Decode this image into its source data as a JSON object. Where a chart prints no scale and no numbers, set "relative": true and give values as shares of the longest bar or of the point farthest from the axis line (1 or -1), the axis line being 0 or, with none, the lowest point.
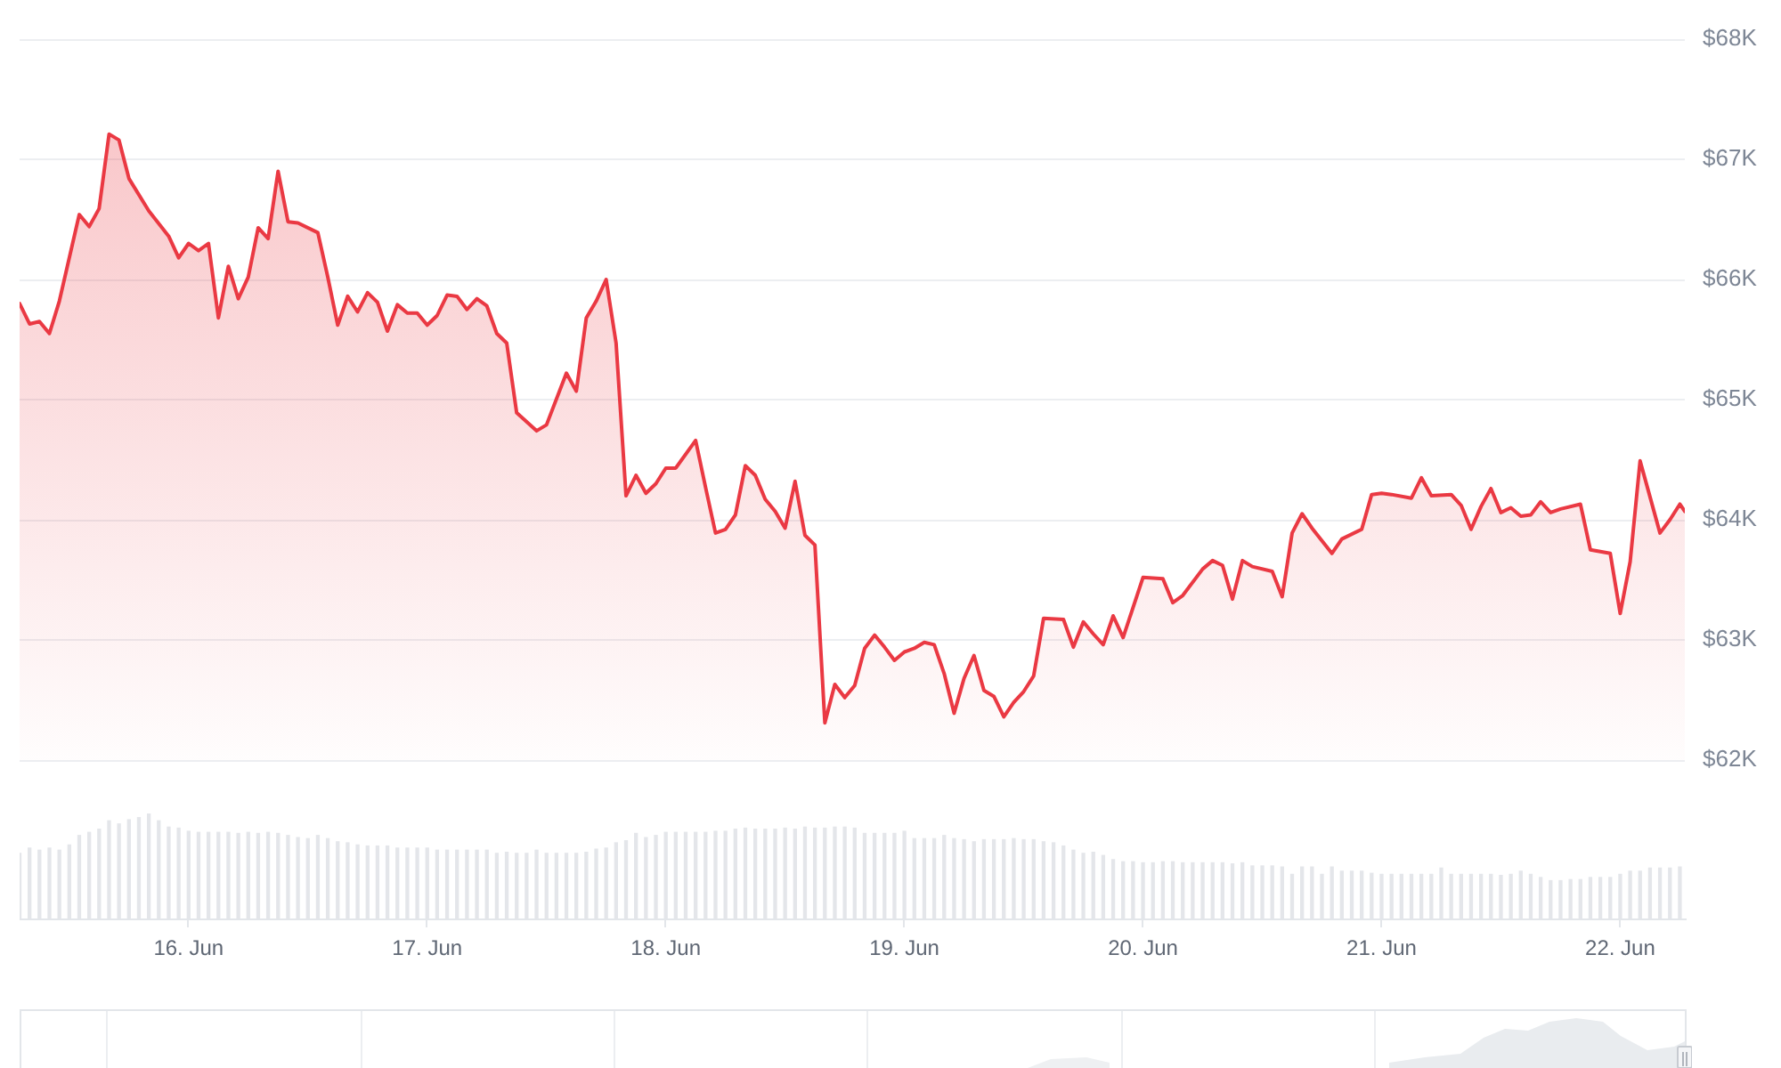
{
  "chart_data": [
    {
      "type": "area",
      "color": "#ea3943",
      "grid": "y",
      "tick_labels": "y",
      "xlim": [
        "--06-15T07:00",
        "--06-22T06:30"
      ],
      "ylim": [
        62000,
        68000
      ],
      "yticks": [
        {
          "value": 62000,
          "label": "$62K"
        },
        {
          "value": 63000,
          "label": "$63K"
        },
        {
          "value": 64000,
          "label": "$64K"
        },
        {
          "value": 65000,
          "label": "$65K"
        },
        {
          "value": 66000,
          "label": "$66K"
        },
        {
          "value": 67000,
          "label": "$67K"
        },
        {
          "value": 68000,
          "label": "$68K"
        }
      ],
      "x": [
        "--06-15T07:00",
        "--06-15T08:00",
        "--06-15T09:00",
        "--06-15T10:00",
        "--06-15T11:00",
        "--06-15T13:00",
        "--06-15T14:00",
        "--06-15T15:00",
        "--06-15T16:00",
        "--06-15T17:00",
        "--06-15T18:00",
        "--06-15T20:00",
        "--06-15T22:00",
        "--06-15T23:00",
        "--06-16T00:00",
        "--06-16T01:00",
        "--06-16T02:00",
        "--06-16T03:00",
        "--06-16T04:00",
        "--06-16T05:00",
        "--06-16T06:00",
        "--06-16T07:00",
        "--06-16T08:00",
        "--06-16T09:00",
        "--06-16T10:00",
        "--06-16T11:00",
        "--06-16T13:00",
        "--06-16T14:00",
        "--06-16T15:00",
        "--06-16T16:00",
        "--06-16T17:00",
        "--06-16T18:00",
        "--06-16T19:00",
        "--06-16T20:00",
        "--06-16T21:00",
        "--06-16T22:00",
        "--06-16T23:00",
        "--06-17T00:00",
        "--06-17T01:00",
        "--06-17T02:00",
        "--06-17T03:00",
        "--06-17T04:00",
        "--06-17T05:00",
        "--06-17T06:00",
        "--06-17T07:00",
        "--06-17T08:00",
        "--06-17T09:00",
        "--06-17T11:00",
        "--06-17T12:00",
        "--06-17T14:00",
        "--06-17T15:00",
        "--06-17T16:00",
        "--06-17T17:00",
        "--06-17T18:00",
        "--06-17T19:00",
        "--06-17T20:00",
        "--06-17T21:00",
        "--06-17T22:00",
        "--06-17T23:00",
        "--06-18T00:00",
        "--06-18T01:00",
        "--06-18T03:00",
        "--06-18T04:00",
        "--06-18T05:00",
        "--06-18T06:00",
        "--06-18T07:00",
        "--06-18T08:00",
        "--06-18T09:00",
        "--06-18T10:00",
        "--06-18T11:00",
        "--06-18T12:00",
        "--06-18T13:00",
        "--06-18T14:00",
        "--06-18T15:00",
        "--06-18T16:00",
        "--06-18T17:00",
        "--06-18T18:00",
        "--06-18T19:00",
        "--06-18T20:00",
        "--06-18T21:00",
        "--06-18T22:00",
        "--06-18T23:00",
        "--06-19T00:00",
        "--06-19T01:00",
        "--06-19T02:00",
        "--06-19T03:00",
        "--06-19T04:00",
        "--06-19T05:00",
        "--06-19T06:00",
        "--06-19T07:00",
        "--06-19T08:00",
        "--06-19T09:00",
        "--06-19T10:00",
        "--06-19T11:00",
        "--06-19T12:00",
        "--06-19T13:00",
        "--06-19T14:00",
        "--06-19T16:00",
        "--06-19T17:00",
        "--06-19T18:00",
        "--06-19T19:00",
        "--06-19T20:00",
        "--06-19T21:00",
        "--06-19T22:00",
        "--06-19T23:00",
        "--06-20T00:00",
        "--06-20T02:00",
        "--06-20T03:00",
        "--06-20T04:00",
        "--06-20T06:00",
        "--06-20T07:00",
        "--06-20T08:00",
        "--06-20T09:00",
        "--06-20T10:00",
        "--06-20T11:00",
        "--06-20T13:00",
        "--06-20T14:00",
        "--06-20T15:00",
        "--06-20T16:00",
        "--06-20T17:00",
        "--06-20T19:00",
        "--06-20T20:00",
        "--06-20T22:00",
        "--06-20T23:00",
        "--06-21T00:00",
        "--06-21T01:00",
        "--06-21T03:00",
        "--06-21T04:00",
        "--06-21T05:00",
        "--06-21T07:00",
        "--06-21T08:00",
        "--06-21T09:00",
        "--06-21T10:00",
        "--06-21T11:00",
        "--06-21T12:00",
        "--06-21T13:00",
        "--06-21T14:00",
        "--06-21T15:00",
        "--06-21T16:00",
        "--06-21T17:00",
        "--06-21T18:00",
        "--06-21T20:00",
        "--06-21T21:00",
        "--06-21T23:00",
        "--06-22T00:00",
        "--06-22T01:00",
        "--06-22T02:00",
        "--06-22T04:00",
        "--06-22T05:00",
        "--06-22T06:00",
        "--06-22T06:30"
      ],
      "values": [
        65800,
        65630,
        65650,
        65550,
        65820,
        66540,
        66440,
        66590,
        67210,
        67160,
        66840,
        66570,
        66360,
        66180,
        66300,
        66240,
        66300,
        65680,
        66110,
        65840,
        66020,
        66430,
        66340,
        66900,
        66480,
        66470,
        66390,
        66020,
        65620,
        65860,
        65730,
        65890,
        65810,
        65570,
        65790,
        65720,
        65720,
        65620,
        65700,
        65870,
        65860,
        65750,
        65840,
        65780,
        65550,
        65470,
        64890,
        64740,
        64790,
        65220,
        65070,
        65680,
        65820,
        66000,
        65470,
        64200,
        64370,
        64220,
        64300,
        64430,
        64430,
        64660,
        64270,
        63890,
        63920,
        64040,
        64450,
        64370,
        64170,
        64070,
        63930,
        64320,
        63870,
        63790,
        62310,
        62630,
        62520,
        62620,
        62930,
        63040,
        62940,
        62830,
        62900,
        62930,
        62980,
        62960,
        62720,
        62390,
        62680,
        62870,
        62580,
        62530,
        62360,
        62480,
        62570,
        62700,
        63180,
        63170,
        62940,
        63150,
        63050,
        62960,
        63200,
        63020,
        63270,
        63520,
        63510,
        63310,
        63370,
        63590,
        63660,
        63620,
        63340,
        63660,
        63610,
        63570,
        63360,
        63890,
        64050,
        63930,
        63720,
        63840,
        63920,
        64210,
        64220,
        64210,
        64180,
        64350,
        64200,
        64210,
        64120,
        63920,
        64110,
        64260,
        64060,
        64100,
        64030,
        64040,
        64150,
        64060,
        64090,
        64130,
        63750,
        63720,
        63220,
        63650,
        64490,
        63890,
        64000,
        64130,
        64070
      ]
    },
    {
      "type": "bar",
      "relative": true,
      "color": "#e4e6ea",
      "xlim": [
        "--06-15T07:00",
        "--06-22T06:30"
      ],
      "xticks": [
        {
          "value": "--06-16",
          "label": "16. Jun"
        },
        {
          "value": "--06-17",
          "label": "17. Jun"
        },
        {
          "value": "--06-18",
          "label": "18. Jun"
        },
        {
          "value": "--06-19",
          "label": "19. Jun"
        },
        {
          "value": "--06-20",
          "label": "20. Jun"
        },
        {
          "value": "--06-21",
          "label": "21. Jun"
        },
        {
          "value": "--06-22",
          "label": "22. Jun"
        }
      ],
      "x": [
        "--06-15T07:00",
        "--06-15T08:00",
        "--06-15T09:00",
        "--06-15T10:00",
        "--06-15T11:00",
        "--06-15T12:00",
        "--06-15T13:00",
        "--06-15T14:00",
        "--06-15T15:00",
        "--06-15T16:00",
        "--06-15T17:00",
        "--06-15T18:00",
        "--06-15T19:00",
        "--06-15T20:00",
        "--06-15T21:00",
        "--06-15T22:00",
        "--06-15T23:00",
        "--06-16T00:00",
        "--06-16T01:00",
        "--06-16T02:00",
        "--06-16T03:00",
        "--06-16T04:00",
        "--06-16T05:00",
        "--06-16T06:00",
        "--06-16T07:00",
        "--06-16T08:00",
        "--06-16T09:00",
        "--06-16T10:00",
        "--06-16T11:00",
        "--06-16T12:00",
        "--06-16T13:00",
        "--06-16T14:00",
        "--06-16T15:00",
        "--06-16T16:00",
        "--06-16T17:00",
        "--06-16T18:00",
        "--06-16T19:00",
        "--06-16T20:00",
        "--06-16T21:00",
        "--06-16T22:00",
        "--06-16T23:00",
        "--06-17T00:00",
        "--06-17T01:00",
        "--06-17T02:00",
        "--06-17T03:00",
        "--06-17T04:00",
        "--06-17T05:00",
        "--06-17T06:00",
        "--06-17T07:00",
        "--06-17T08:00",
        "--06-17T09:00",
        "--06-17T10:00",
        "--06-17T11:00",
        "--06-17T12:00",
        "--06-17T13:00",
        "--06-17T14:00",
        "--06-17T15:00",
        "--06-17T16:00",
        "--06-17T17:00",
        "--06-17T18:00",
        "--06-17T19:00",
        "--06-17T20:00",
        "--06-17T21:00",
        "--06-17T22:00",
        "--06-17T23:00",
        "--06-18T00:00",
        "--06-18T01:00",
        "--06-18T02:00",
        "--06-18T03:00",
        "--06-18T04:00",
        "--06-18T05:00",
        "--06-18T06:00",
        "--06-18T07:00",
        "--06-18T08:00",
        "--06-18T09:00",
        "--06-18T10:00",
        "--06-18T11:00",
        "--06-18T12:00",
        "--06-18T13:00",
        "--06-18T14:00",
        "--06-18T15:00",
        "--06-18T16:00",
        "--06-18T17:00",
        "--06-18T18:00",
        "--06-18T19:00",
        "--06-18T20:00",
        "--06-18T21:00",
        "--06-18T22:00",
        "--06-18T23:00",
        "--06-19T00:00",
        "--06-19T01:00",
        "--06-19T02:00",
        "--06-19T03:00",
        "--06-19T04:00",
        "--06-19T05:00",
        "--06-19T06:00",
        "--06-19T07:00",
        "--06-19T08:00",
        "--06-19T09:00",
        "--06-19T10:00",
        "--06-19T11:00",
        "--06-19T12:00",
        "--06-19T13:00",
        "--06-19T14:00",
        "--06-19T15:00",
        "--06-19T16:00",
        "--06-19T17:00",
        "--06-19T18:00",
        "--06-19T19:00",
        "--06-19T20:00",
        "--06-19T21:00",
        "--06-19T22:00",
        "--06-19T23:00",
        "--06-20T00:00",
        "--06-20T01:00",
        "--06-20T02:00",
        "--06-20T03:00",
        "--06-20T04:00",
        "--06-20T05:00",
        "--06-20T06:00",
        "--06-20T07:00",
        "--06-20T08:00",
        "--06-20T09:00",
        "--06-20T10:00",
        "--06-20T11:00",
        "--06-20T12:00",
        "--06-20T13:00",
        "--06-20T14:00",
        "--06-20T15:00",
        "--06-20T16:00",
        "--06-20T17:00",
        "--06-20T18:00",
        "--06-20T19:00",
        "--06-20T20:00",
        "--06-20T21:00",
        "--06-20T22:00",
        "--06-20T23:00",
        "--06-21T00:00",
        "--06-21T01:00",
        "--06-21T02:00",
        "--06-21T03:00",
        "--06-21T04:00",
        "--06-21T05:00",
        "--06-21T06:00",
        "--06-21T07:00",
        "--06-21T08:00",
        "--06-21T09:00",
        "--06-21T10:00",
        "--06-21T11:00",
        "--06-21T12:00",
        "--06-21T13:00",
        "--06-21T14:00",
        "--06-21T15:00",
        "--06-21T16:00",
        "--06-21T17:00",
        "--06-21T18:00",
        "--06-21T19:00",
        "--06-21T20:00",
        "--06-21T21:00",
        "--06-21T22:00",
        "--06-21T23:00",
        "--06-22T00:00",
        "--06-22T01:00",
        "--06-22T02:00",
        "--06-22T03:00",
        "--06-22T04:00",
        "--06-22T05:00",
        "--06-22T06:00"
      ],
      "values": [
        0.62,
        0.67,
        0.65,
        0.67,
        0.65,
        0.7,
        0.79,
        0.82,
        0.85,
        0.93,
        0.9,
        0.94,
        0.96,
        1,
        0.93,
        0.87,
        0.86,
        0.83,
        0.82,
        0.82,
        0.82,
        0.82,
        0.81,
        0.82,
        0.81,
        0.82,
        0.81,
        0.79,
        0.77,
        0.76,
        0.79,
        0.76,
        0.73,
        0.72,
        0.7,
        0.69,
        0.69,
        0.69,
        0.67,
        0.67,
        0.67,
        0.67,
        0.65,
        0.65,
        0.65,
        0.65,
        0.65,
        0.65,
        0.62,
        0.63,
        0.62,
        0.62,
        0.65,
        0.62,
        0.62,
        0.62,
        0.62,
        0.63,
        0.66,
        0.67,
        0.72,
        0.74,
        0.81,
        0.77,
        0.79,
        0.82,
        0.82,
        0.82,
        0.82,
        0.82,
        0.83,
        0.83,
        0.85,
        0.86,
        0.85,
        0.85,
        0.85,
        0.86,
        0.85,
        0.87,
        0.86,
        0.86,
        0.87,
        0.87,
        0.86,
        0.81,
        0.81,
        0.81,
        0.81,
        0.83,
        0.76,
        0.76,
        0.76,
        0.79,
        0.76,
        0.75,
        0.73,
        0.75,
        0.75,
        0.75,
        0.76,
        0.75,
        0.75,
        0.73,
        0.72,
        0.69,
        0.65,
        0.62,
        0.63,
        0.6,
        0.56,
        0.54,
        0.54,
        0.53,
        0.53,
        0.54,
        0.54,
        0.53,
        0.53,
        0.53,
        0.53,
        0.53,
        0.52,
        0.53,
        0.5,
        0.5,
        0.5,
        0.49,
        0.42,
        0.49,
        0.49,
        0.42,
        0.49,
        0.45,
        0.45,
        0.45,
        0.43,
        0.42,
        0.42,
        0.42,
        0.42,
        0.42,
        0.42,
        0.48,
        0.42,
        0.42,
        0.42,
        0.42,
        0.42,
        0.41,
        0.42,
        0.45,
        0.42,
        0.39,
        0.36,
        0.36,
        0.37,
        0.37,
        0.39,
        0.39,
        0.39,
        0.42,
        0.45,
        0.45,
        0.48,
        0.48,
        0.48,
        0.49
      ]
    }
  ]
}
